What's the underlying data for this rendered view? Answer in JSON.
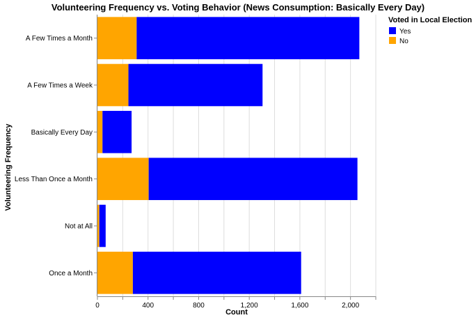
{
  "chart_data": {
    "type": "bar",
    "orientation": "horizontal",
    "stacked": true,
    "title": "Volunteering Frequency vs. Voting Behavior (News Consumption: Basically Every Day)",
    "xlabel": "Count",
    "ylabel": "Volunteering Frequency",
    "xlim": [
      0,
      2200
    ],
    "xticks": [
      0,
      400,
      800,
      1200,
      1600,
      2000
    ],
    "xtick_labels": [
      "0",
      "400",
      "800",
      "1,200",
      "1,600",
      "2,000"
    ],
    "grid": true,
    "legend": {
      "title": "Voted in Local Election",
      "placement": "top-right",
      "entries": [
        {
          "label": "Yes",
          "color": "#0000ff"
        },
        {
          "label": "No",
          "color": "#ffa500"
        }
      ]
    },
    "categories": [
      "A Few Times a Month",
      "A Few Times a Week",
      "Basically Every Day",
      "Less Than Once a Month",
      "Not at All",
      "Once a Month"
    ],
    "series": [
      {
        "name": "No",
        "color": "#ffa500",
        "values": [
          310,
          245,
          40,
          405,
          15,
          280
        ]
      },
      {
        "name": "Yes",
        "color": "#0000ff",
        "values": [
          1760,
          1060,
          230,
          1650,
          50,
          1330
        ]
      }
    ]
  }
}
